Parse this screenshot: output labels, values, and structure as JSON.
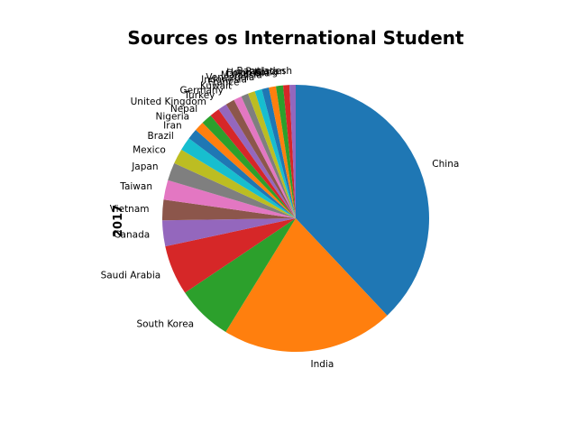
{
  "chart_data": {
    "type": "pie",
    "title": "Sources os International Student",
    "ylabel": "2017",
    "start_angle_deg": 90,
    "counterclock": false,
    "legend": "none",
    "grid": false,
    "slices": [
      {
        "label": "China",
        "value": 35.2,
        "color": "#1f77b4"
      },
      {
        "label": "India",
        "value": 19.3,
        "color": "#ff7f0e"
      },
      {
        "label": "South Korea",
        "value": 6.3,
        "color": "#2ca02c"
      },
      {
        "label": "Saudi Arabia",
        "value": 5.6,
        "color": "#d62728"
      },
      {
        "label": "Canada",
        "value": 2.9,
        "color": "#9467bd"
      },
      {
        "label": "Vietnam",
        "value": 2.3,
        "color": "#8c564b"
      },
      {
        "label": "Taiwan",
        "value": 2.2,
        "color": "#e377c2"
      },
      {
        "label": "Japan",
        "value": 2.0,
        "color": "#7f7f7f"
      },
      {
        "label": "Mexico",
        "value": 1.7,
        "color": "#bcbd22"
      },
      {
        "label": "Brazil",
        "value": 1.5,
        "color": "#17becf"
      },
      {
        "label": "Iran",
        "value": 1.2,
        "color": "#1f77b4"
      },
      {
        "label": "Nigeria",
        "value": 1.1,
        "color": "#ff7f0e"
      },
      {
        "label": "Nepal",
        "value": 1.2,
        "color": "#2ca02c"
      },
      {
        "label": "United Kingdom",
        "value": 1.1,
        "color": "#d62728"
      },
      {
        "label": "Turkey",
        "value": 1.0,
        "color": "#9467bd"
      },
      {
        "label": "Germany",
        "value": 1.0,
        "color": "#8c564b"
      },
      {
        "label": "Kuwait",
        "value": 0.9,
        "color": "#e377c2"
      },
      {
        "label": "France",
        "value": 0.8,
        "color": "#7f7f7f"
      },
      {
        "label": "Indonesia",
        "value": 0.8,
        "color": "#bcbd22"
      },
      {
        "label": "Venezuela",
        "value": 0.8,
        "color": "#17becf"
      },
      {
        "label": "Malaysia",
        "value": 0.8,
        "color": "#1f77b4"
      },
      {
        "label": "Colombia",
        "value": 0.8,
        "color": "#ff7f0e"
      },
      {
        "label": "Hong Kong",
        "value": 0.8,
        "color": "#2ca02c"
      },
      {
        "label": "Pakistan",
        "value": 0.7,
        "color": "#d62728"
      },
      {
        "label": "Bangladesh",
        "value": 0.7,
        "color": "#9467bd"
      }
    ]
  }
}
